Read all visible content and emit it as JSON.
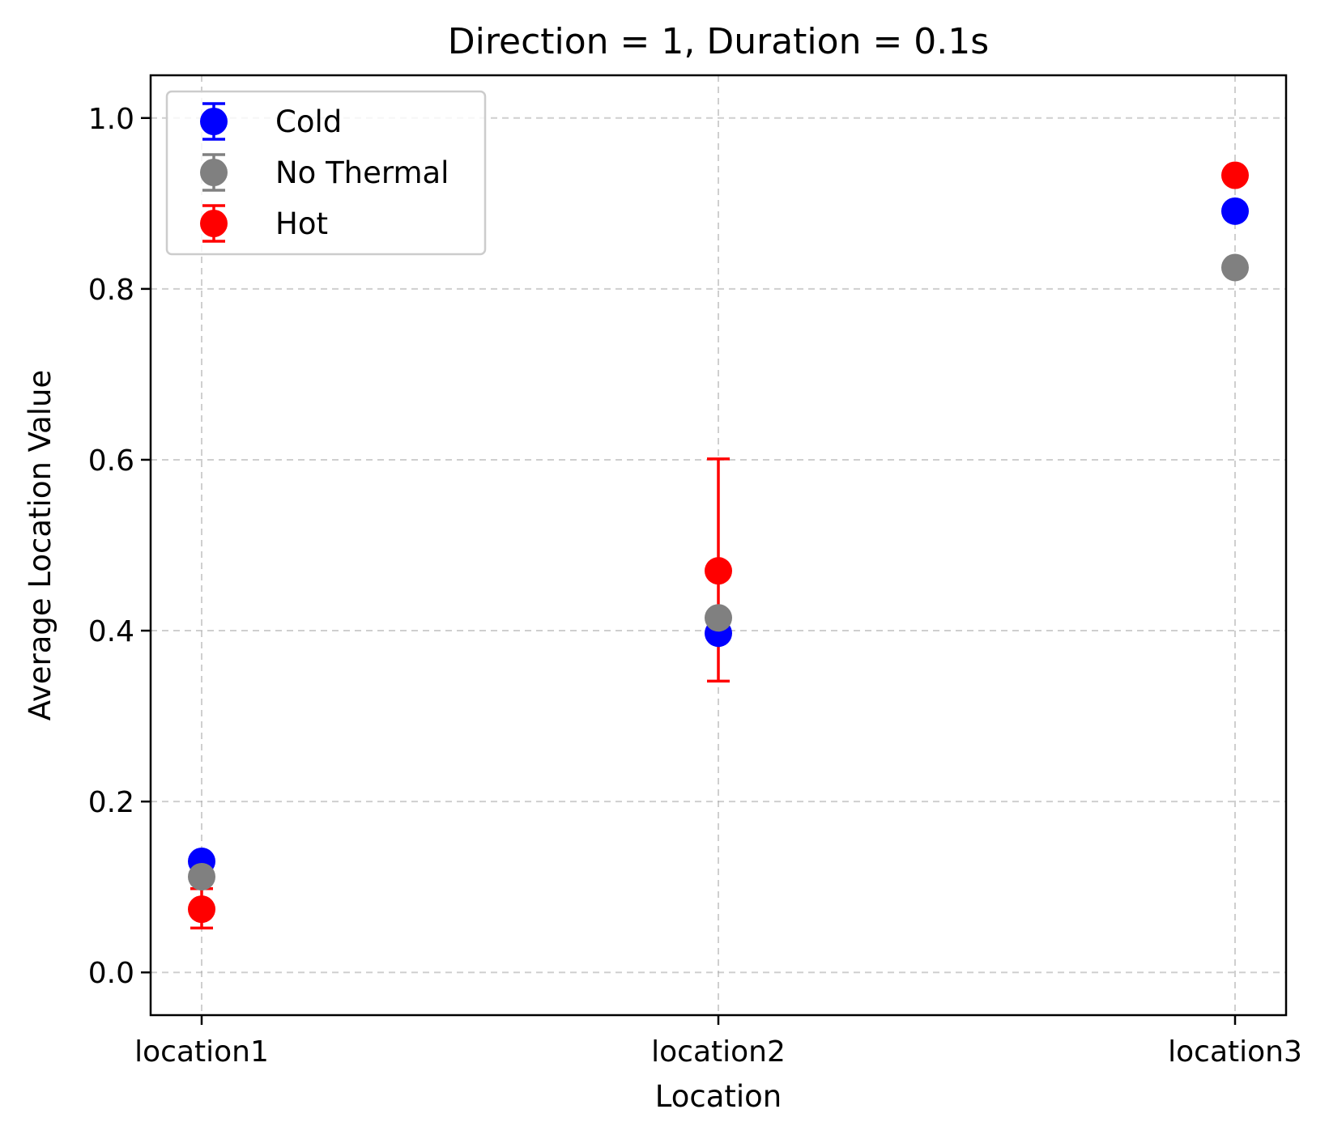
{
  "chart_data": {
    "type": "scatter",
    "title": "Direction = 1, Duration = 0.1s",
    "xlabel": "Location",
    "ylabel": "Average Location Value",
    "categories": [
      "location1",
      "location2",
      "location3"
    ],
    "ylim": [
      -0.05,
      1.05
    ],
    "yticks": [
      "0.0",
      "0.2",
      "0.4",
      "0.6",
      "0.8",
      "1.0"
    ],
    "grid": true,
    "legend_position": "top-left",
    "series": [
      {
        "name": "Cold",
        "color": "#0000ff",
        "values": [
          0.13,
          0.397,
          0.891
        ],
        "error_low": [
          0.13,
          0.397,
          0.891
        ],
        "error_high": [
          0.13,
          0.397,
          0.891
        ]
      },
      {
        "name": "No Thermal",
        "color": "#808080",
        "values": [
          0.112,
          0.415,
          0.825
        ],
        "error_low": [
          0.112,
          0.415,
          0.825
        ],
        "error_high": [
          0.112,
          0.415,
          0.825
        ]
      },
      {
        "name": "Hot",
        "color": "#ff0000",
        "values": [
          0.074,
          0.47,
          0.933
        ],
        "error_low": [
          0.052,
          0.341,
          0.933
        ],
        "error_high": [
          0.098,
          0.601,
          0.933
        ]
      }
    ]
  }
}
